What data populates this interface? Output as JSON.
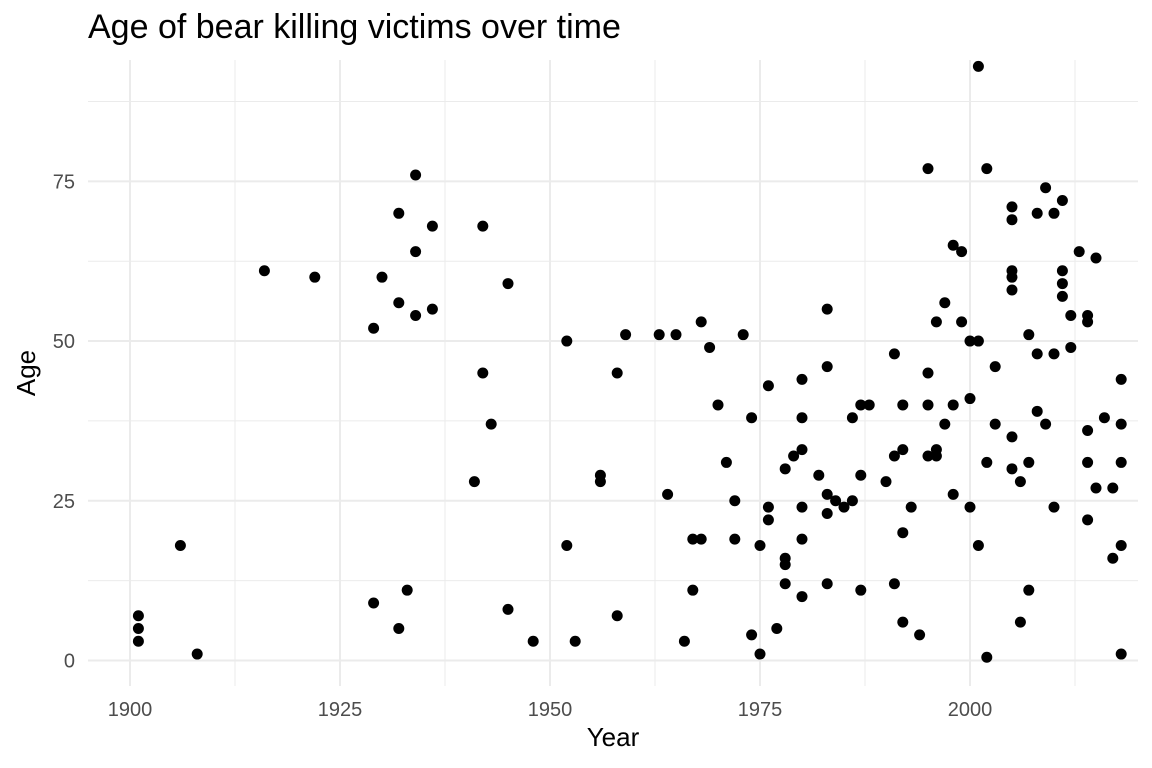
{
  "chart_data": {
    "type": "scatter",
    "title": "Age of bear killing victims over time",
    "xlabel": "Year",
    "ylabel": "Age",
    "xlim": [
      1895,
      2020
    ],
    "ylim": [
      -4,
      94
    ],
    "x_ticks": [
      1900,
      1925,
      1950,
      1975,
      2000
    ],
    "y_ticks": [
      0,
      25,
      50,
      75
    ],
    "grid": true,
    "legend": "none",
    "point_color": "#000000",
    "grid_color": "#ebebeb",
    "points": [
      [
        1901,
        7
      ],
      [
        1901,
        5
      ],
      [
        1901,
        3
      ],
      [
        1906,
        18
      ],
      [
        1908,
        1
      ],
      [
        1916,
        61
      ],
      [
        1922,
        60
      ],
      [
        1929,
        52
      ],
      [
        1929,
        9
      ],
      [
        1930,
        60
      ],
      [
        1932,
        70
      ],
      [
        1932,
        56
      ],
      [
        1932,
        5
      ],
      [
        1933,
        11
      ],
      [
        1934,
        76
      ],
      [
        1934,
        64
      ],
      [
        1934,
        54
      ],
      [
        1936,
        68
      ],
      [
        1936,
        55
      ],
      [
        1941,
        28
      ],
      [
        1942,
        68
      ],
      [
        1942,
        45
      ],
      [
        1943,
        37
      ],
      [
        1945,
        59
      ],
      [
        1945,
        8
      ],
      [
        1948,
        3
      ],
      [
        1952,
        50
      ],
      [
        1952,
        18
      ],
      [
        1953,
        3
      ],
      [
        1956,
        29
      ],
      [
        1956,
        28
      ],
      [
        1958,
        45
      ],
      [
        1958,
        7
      ],
      [
        1959,
        51
      ],
      [
        1963,
        51
      ],
      [
        1964,
        26
      ],
      [
        1965,
        51
      ],
      [
        1966,
        3
      ],
      [
        1967,
        19
      ],
      [
        1967,
        11
      ],
      [
        1968,
        53
      ],
      [
        1968,
        19
      ],
      [
        1969,
        49
      ],
      [
        1970,
        40
      ],
      [
        1971,
        31
      ],
      [
        1972,
        25
      ],
      [
        1972,
        19
      ],
      [
        1973,
        51
      ],
      [
        1974,
        38
      ],
      [
        1974,
        4
      ],
      [
        1975,
        18
      ],
      [
        1975,
        1
      ],
      [
        1976,
        43
      ],
      [
        1976,
        24
      ],
      [
        1976,
        22
      ],
      [
        1977,
        5
      ],
      [
        1978,
        30
      ],
      [
        1978,
        16
      ],
      [
        1978,
        15
      ],
      [
        1978,
        12
      ],
      [
        1979,
        32
      ],
      [
        1980,
        44
      ],
      [
        1980,
        38
      ],
      [
        1980,
        33
      ],
      [
        1980,
        24
      ],
      [
        1980,
        19
      ],
      [
        1980,
        10
      ],
      [
        1982,
        29
      ],
      [
        1983,
        55
      ],
      [
        1983,
        46
      ],
      [
        1983,
        26
      ],
      [
        1983,
        23
      ],
      [
        1983,
        12
      ],
      [
        1984,
        25
      ],
      [
        1985,
        24
      ],
      [
        1986,
        38
      ],
      [
        1986,
        25
      ],
      [
        1987,
        40
      ],
      [
        1987,
        29
      ],
      [
        1987,
        11
      ],
      [
        1988,
        40
      ],
      [
        1990,
        28
      ],
      [
        1991,
        48
      ],
      [
        1991,
        32
      ],
      [
        1991,
        12
      ],
      [
        1992,
        40
      ],
      [
        1992,
        33
      ],
      [
        1992,
        20
      ],
      [
        1992,
        6
      ],
      [
        1993,
        24
      ],
      [
        1994,
        4
      ],
      [
        1995,
        77
      ],
      [
        1995,
        45
      ],
      [
        1995,
        40
      ],
      [
        1995,
        32
      ],
      [
        1996,
        53
      ],
      [
        1996,
        33
      ],
      [
        1996,
        32
      ],
      [
        1997,
        56
      ],
      [
        1997,
        37
      ],
      [
        1998,
        65
      ],
      [
        1998,
        40
      ],
      [
        1998,
        26
      ],
      [
        1999,
        64
      ],
      [
        1999,
        53
      ],
      [
        2000,
        50
      ],
      [
        2000,
        41
      ],
      [
        2000,
        24
      ],
      [
        2001,
        93
      ],
      [
        2001,
        50
      ],
      [
        2001,
        18
      ],
      [
        2002,
        77
      ],
      [
        2002,
        31
      ],
      [
        2002,
        0.5
      ],
      [
        2003,
        46
      ],
      [
        2003,
        37
      ],
      [
        2005,
        71
      ],
      [
        2005,
        69
      ],
      [
        2005,
        61
      ],
      [
        2005,
        60
      ],
      [
        2005,
        58
      ],
      [
        2005,
        35
      ],
      [
        2005,
        30
      ],
      [
        2006,
        28
      ],
      [
        2006,
        6
      ],
      [
        2007,
        51
      ],
      [
        2007,
        31
      ],
      [
        2007,
        11
      ],
      [
        2008,
        70
      ],
      [
        2008,
        48
      ],
      [
        2008,
        39
      ],
      [
        2009,
        74
      ],
      [
        2009,
        37
      ],
      [
        2010,
        70
      ],
      [
        2010,
        48
      ],
      [
        2010,
        24
      ],
      [
        2011,
        72
      ],
      [
        2011,
        61
      ],
      [
        2011,
        59
      ],
      [
        2011,
        57
      ],
      [
        2012,
        54
      ],
      [
        2012,
        49
      ],
      [
        2013,
        64
      ],
      [
        2014,
        54
      ],
      [
        2014,
        53
      ],
      [
        2014,
        36
      ],
      [
        2014,
        31
      ],
      [
        2014,
        22
      ],
      [
        2015,
        63
      ],
      [
        2015,
        27
      ],
      [
        2016,
        38
      ],
      [
        2017,
        27
      ],
      [
        2017,
        16
      ],
      [
        2018,
        44
      ],
      [
        2018,
        37
      ],
      [
        2018,
        31
      ],
      [
        2018,
        18
      ],
      [
        2018,
        1
      ]
    ]
  }
}
